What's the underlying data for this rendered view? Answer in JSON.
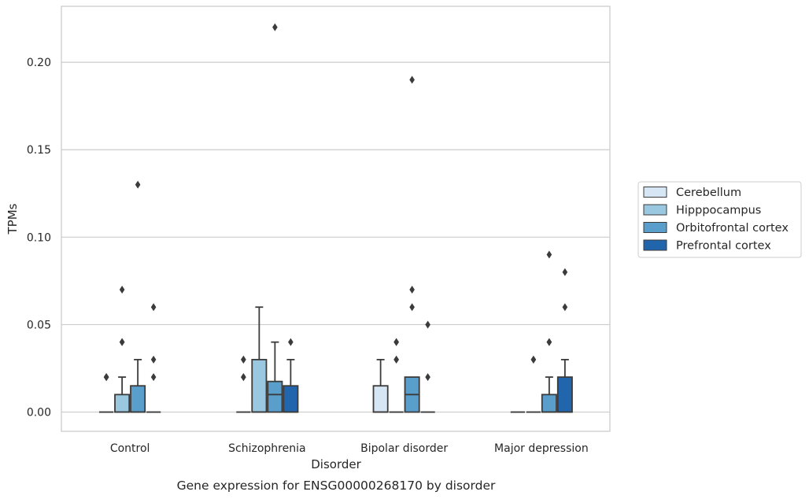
{
  "chart_data": {
    "type": "box",
    "xlabel": "Disorder",
    "ylabel": "TPMs",
    "caption": "Gene expression for ENSG00000268170 by disorder",
    "categories": [
      "Control",
      "Schizophrenia",
      "Bipolar disorder",
      "Major depression"
    ],
    "ylim": [
      -0.011,
      0.232
    ],
    "yticks": [
      0.0,
      0.05,
      0.1,
      0.15,
      0.2
    ],
    "ytick_labels": [
      "0.00",
      "0.05",
      "0.10",
      "0.15",
      "0.20"
    ],
    "grid": "horizontal",
    "legend_position": "right",
    "series": [
      {
        "name": "Cerebellum",
        "color": "#d6e6f4",
        "boxes": [
          {
            "q1": 0,
            "median": 0,
            "q3": 0,
            "whisker_low": 0,
            "whisker_high": 0,
            "outliers": [
              0.02,
              0.02,
              0.02
            ]
          },
          {
            "q1": 0,
            "median": 0,
            "q3": 0,
            "whisker_low": 0,
            "whisker_high": 0,
            "outliers": [
              0.02,
              0.02,
              0.03,
              0.03
            ]
          },
          {
            "q1": 0,
            "median": 0,
            "q3": 0.015,
            "whisker_low": 0,
            "whisker_high": 0.03,
            "outliers": []
          },
          {
            "q1": 0,
            "median": 0,
            "q3": 0,
            "whisker_low": 0,
            "whisker_high": 0,
            "outliers": []
          }
        ]
      },
      {
        "name": "Hipppocampus",
        "color": "#9ac8e0",
        "boxes": [
          {
            "q1": 0,
            "median": 0,
            "q3": 0.01,
            "whisker_low": 0,
            "whisker_high": 0.02,
            "outliers": [
              0.04,
              0.04,
              0.07
            ]
          },
          {
            "q1": 0,
            "median": 0,
            "q3": 0.03,
            "whisker_low": 0,
            "whisker_high": 0.06,
            "outliers": []
          },
          {
            "q1": 0,
            "median": 0,
            "q3": 0,
            "whisker_low": 0,
            "whisker_high": 0,
            "outliers": [
              0.03,
              0.03,
              0.04,
              0.04
            ]
          },
          {
            "q1": 0,
            "median": 0,
            "q3": 0,
            "whisker_low": 0,
            "whisker_high": 0,
            "outliers": [
              0.03,
              0.03
            ]
          }
        ]
      },
      {
        "name": "Orbitofrontal cortex",
        "color": "#5a9fcc",
        "boxes": [
          {
            "q1": 0,
            "median": 0,
            "q3": 0.015,
            "whisker_low": 0,
            "whisker_high": 0.03,
            "outliers": [
              0.13
            ]
          },
          {
            "q1": 0,
            "median": 0.01,
            "q3": 0.0175,
            "whisker_low": 0,
            "whisker_high": 0.04,
            "outliers": [
              0.22
            ]
          },
          {
            "q1": 0,
            "median": 0.01,
            "q3": 0.02,
            "whisker_low": 0,
            "whisker_high": 0.02,
            "outliers": [
              0.06,
              0.07,
              0.19
            ]
          },
          {
            "q1": 0,
            "median": 0,
            "q3": 0.01,
            "whisker_low": 0,
            "whisker_high": 0.02,
            "outliers": [
              0.04,
              0.04,
              0.09
            ]
          }
        ]
      },
      {
        "name": "Prefrontal cortex",
        "color": "#2166ac",
        "boxes": [
          {
            "q1": 0,
            "median": 0,
            "q3": 0,
            "whisker_low": 0,
            "whisker_high": 0,
            "outliers": [
              0.02,
              0.03,
              0.06
            ]
          },
          {
            "q1": 0,
            "median": 0,
            "q3": 0.015,
            "whisker_low": 0,
            "whisker_high": 0.03,
            "outliers": [
              0.04
            ]
          },
          {
            "q1": 0,
            "median": 0,
            "q3": 0,
            "whisker_low": 0,
            "whisker_high": 0,
            "outliers": [
              0.02,
              0.05
            ]
          },
          {
            "q1": 0,
            "median": 0,
            "q3": 0.02,
            "whisker_low": 0,
            "whisker_high": 0.03,
            "outliers": [
              0.06,
              0.08
            ]
          }
        ]
      }
    ]
  }
}
